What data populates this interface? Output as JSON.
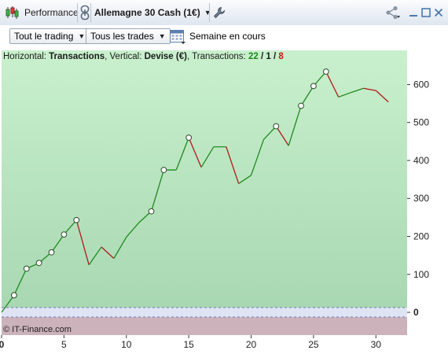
{
  "titlebar": {
    "tab_label": "Performance",
    "instrument": "Allemagne 30 Cash (1€)"
  },
  "toolbar": {
    "trading_filter": "Tout le trading",
    "trades_filter": "Tous les trades",
    "period_label": "Semaine en cours"
  },
  "legend": {
    "prefix_h": "Horizontal: ",
    "h_value": "Transactions",
    "prefix_v": ", Vertical: ",
    "v_value": "Devise (€)",
    "prefix_t": ", Transactions: ",
    "wins": "22",
    "slash1": " / ",
    "neutral": "1",
    "slash2": " / ",
    "losses": "8"
  },
  "watermark": "© IT-Finance.com",
  "colors": {
    "up": "#1f8a1f",
    "down": "#b0181b",
    "positive_bg_top": "#c9f0cd",
    "positive_bg_bottom": "#a8d8b2",
    "negative_bg": "#ccb2bb"
  },
  "icons": [
    "candlestick-icon",
    "link-icon",
    "wrench-icon",
    "share-icon",
    "minimize-icon",
    "maximize-icon",
    "close-icon",
    "calendar-icon"
  ],
  "chart_data": {
    "type": "line",
    "xlabel": "",
    "ylabel": "",
    "xlim": [
      0,
      32.5
    ],
    "ylim": [
      -60,
      690
    ],
    "x_ticks": [
      0,
      5,
      10,
      15,
      20,
      25,
      30
    ],
    "y_ticks": [
      0,
      100,
      200,
      300,
      400,
      500,
      600
    ],
    "zero_label_bold": true,
    "points": [
      {
        "x": 0,
        "y": 0
      },
      {
        "x": 1,
        "y": 45
      },
      {
        "x": 2,
        "y": 115
      },
      {
        "x": 3,
        "y": 130
      },
      {
        "x": 4,
        "y": 158
      },
      {
        "x": 5,
        "y": 205
      },
      {
        "x": 6,
        "y": 243
      },
      {
        "x": 7,
        "y": 125
      },
      {
        "x": 8,
        "y": 172
      },
      {
        "x": 9,
        "y": 142
      },
      {
        "x": 10,
        "y": 198
      },
      {
        "x": 11,
        "y": 236
      },
      {
        "x": 12,
        "y": 266
      },
      {
        "x": 13,
        "y": 375
      },
      {
        "x": 14,
        "y": 375
      },
      {
        "x": 15,
        "y": 460
      },
      {
        "x": 16,
        "y": 382
      },
      {
        "x": 17,
        "y": 436
      },
      {
        "x": 18,
        "y": 436
      },
      {
        "x": 19,
        "y": 339
      },
      {
        "x": 20,
        "y": 361
      },
      {
        "x": 21,
        "y": 455
      },
      {
        "x": 22,
        "y": 490
      },
      {
        "x": 23,
        "y": 439
      },
      {
        "x": 24,
        "y": 544
      },
      {
        "x": 25,
        "y": 596
      },
      {
        "x": 26,
        "y": 634
      },
      {
        "x": 27,
        "y": 567
      },
      {
        "x": 28,
        "y": 579
      },
      {
        "x": 29,
        "y": 590
      },
      {
        "x": 30,
        "y": 584
      },
      {
        "x": 31,
        "y": 554
      }
    ],
    "marked_points": [
      1,
      2,
      3,
      4,
      5,
      6,
      12,
      13,
      15,
      22,
      24,
      25,
      26
    ]
  }
}
